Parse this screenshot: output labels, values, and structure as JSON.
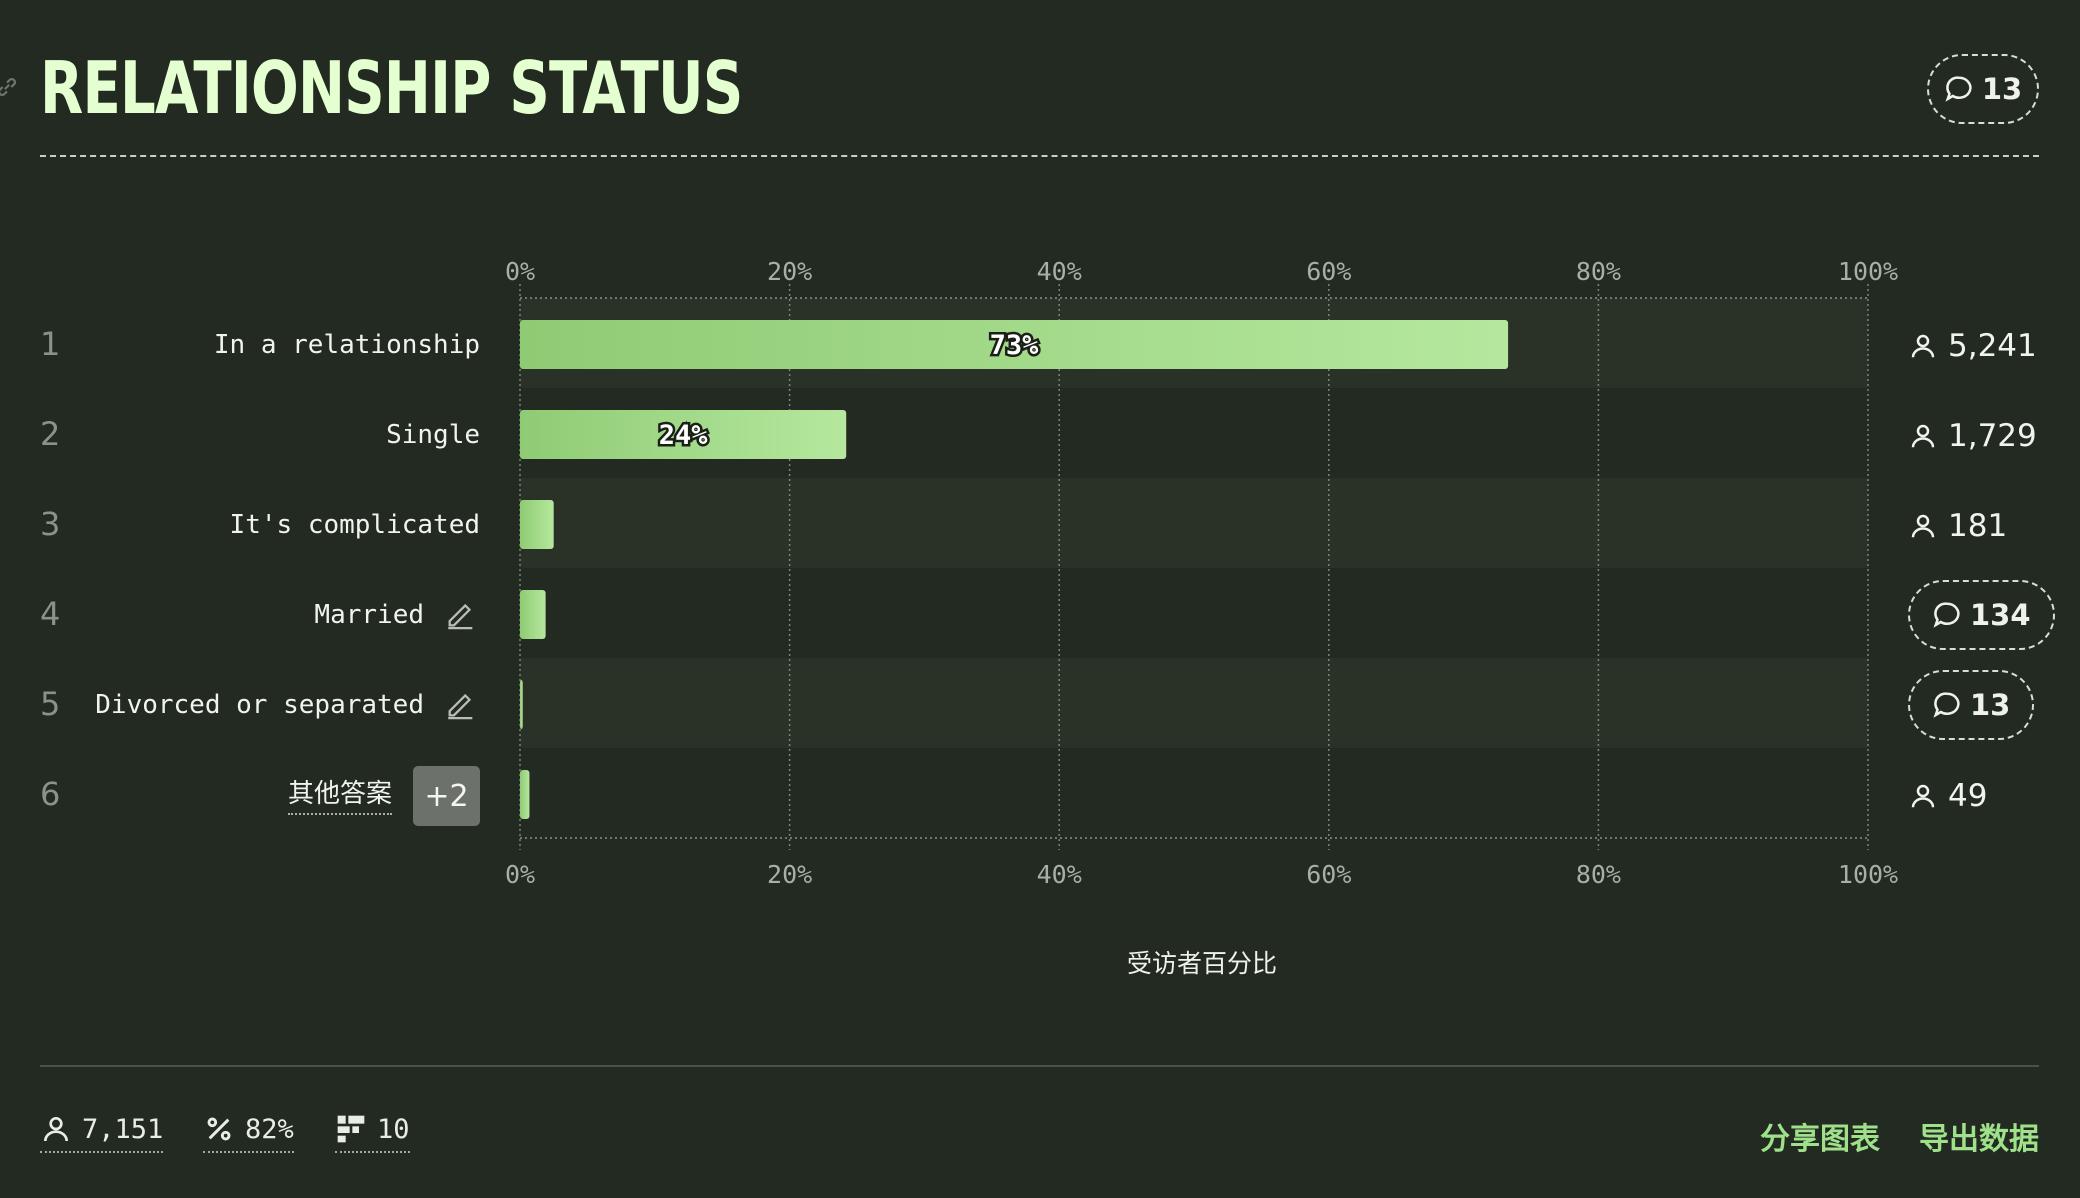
{
  "header": {
    "title": "RELATIONSHIP STATUS",
    "comment_count": "13"
  },
  "rows": [
    {
      "rank": "1",
      "label": "In a relationship",
      "count": "5,241"
    },
    {
      "rank": "2",
      "label": "Single",
      "count": "1,729"
    },
    {
      "rank": "3",
      "label": "It's complicated",
      "count": "181"
    },
    {
      "rank": "4",
      "label": "Married",
      "comments": "134"
    },
    {
      "rank": "5",
      "label": "Divorced or separated",
      "comments": "13"
    },
    {
      "rank": "6",
      "label": "其他答案",
      "extra_badge": "+2",
      "count": "49"
    }
  ],
  "chart_data": {
    "type": "bar",
    "orientation": "horizontal",
    "categories": [
      "In a relationship",
      "Single",
      "It's complicated",
      "Married",
      "Divorced or separated",
      "其他答案"
    ],
    "values": [
      73.3,
      24.2,
      2.5,
      1.9,
      0.2,
      0.7
    ],
    "data_labels": [
      "73%",
      "24%",
      "",
      "",
      "",
      ""
    ],
    "x_ticks": [
      "0%",
      "20%",
      "40%",
      "60%",
      "80%",
      "100%"
    ],
    "xlim": [
      0,
      100
    ],
    "xlabel": "受访者百分比",
    "grid": true
  },
  "footer": {
    "respondents": "7,151",
    "percent": "82%",
    "options": "10",
    "share_label": "分享图表",
    "export_label": "导出数据"
  },
  "colors": {
    "background": "#232a21",
    "bar_start": "#8fcb74",
    "bar_end": "#b5e89e",
    "title": "#e4ffd0",
    "accent": "#9fe08a"
  },
  "icons": {
    "comment": "comment-bubble-icon",
    "person": "person-icon",
    "percent": "percent-icon",
    "options": "options-grid-icon",
    "edit": "edit-pencil-icon",
    "link": "link-icon"
  }
}
